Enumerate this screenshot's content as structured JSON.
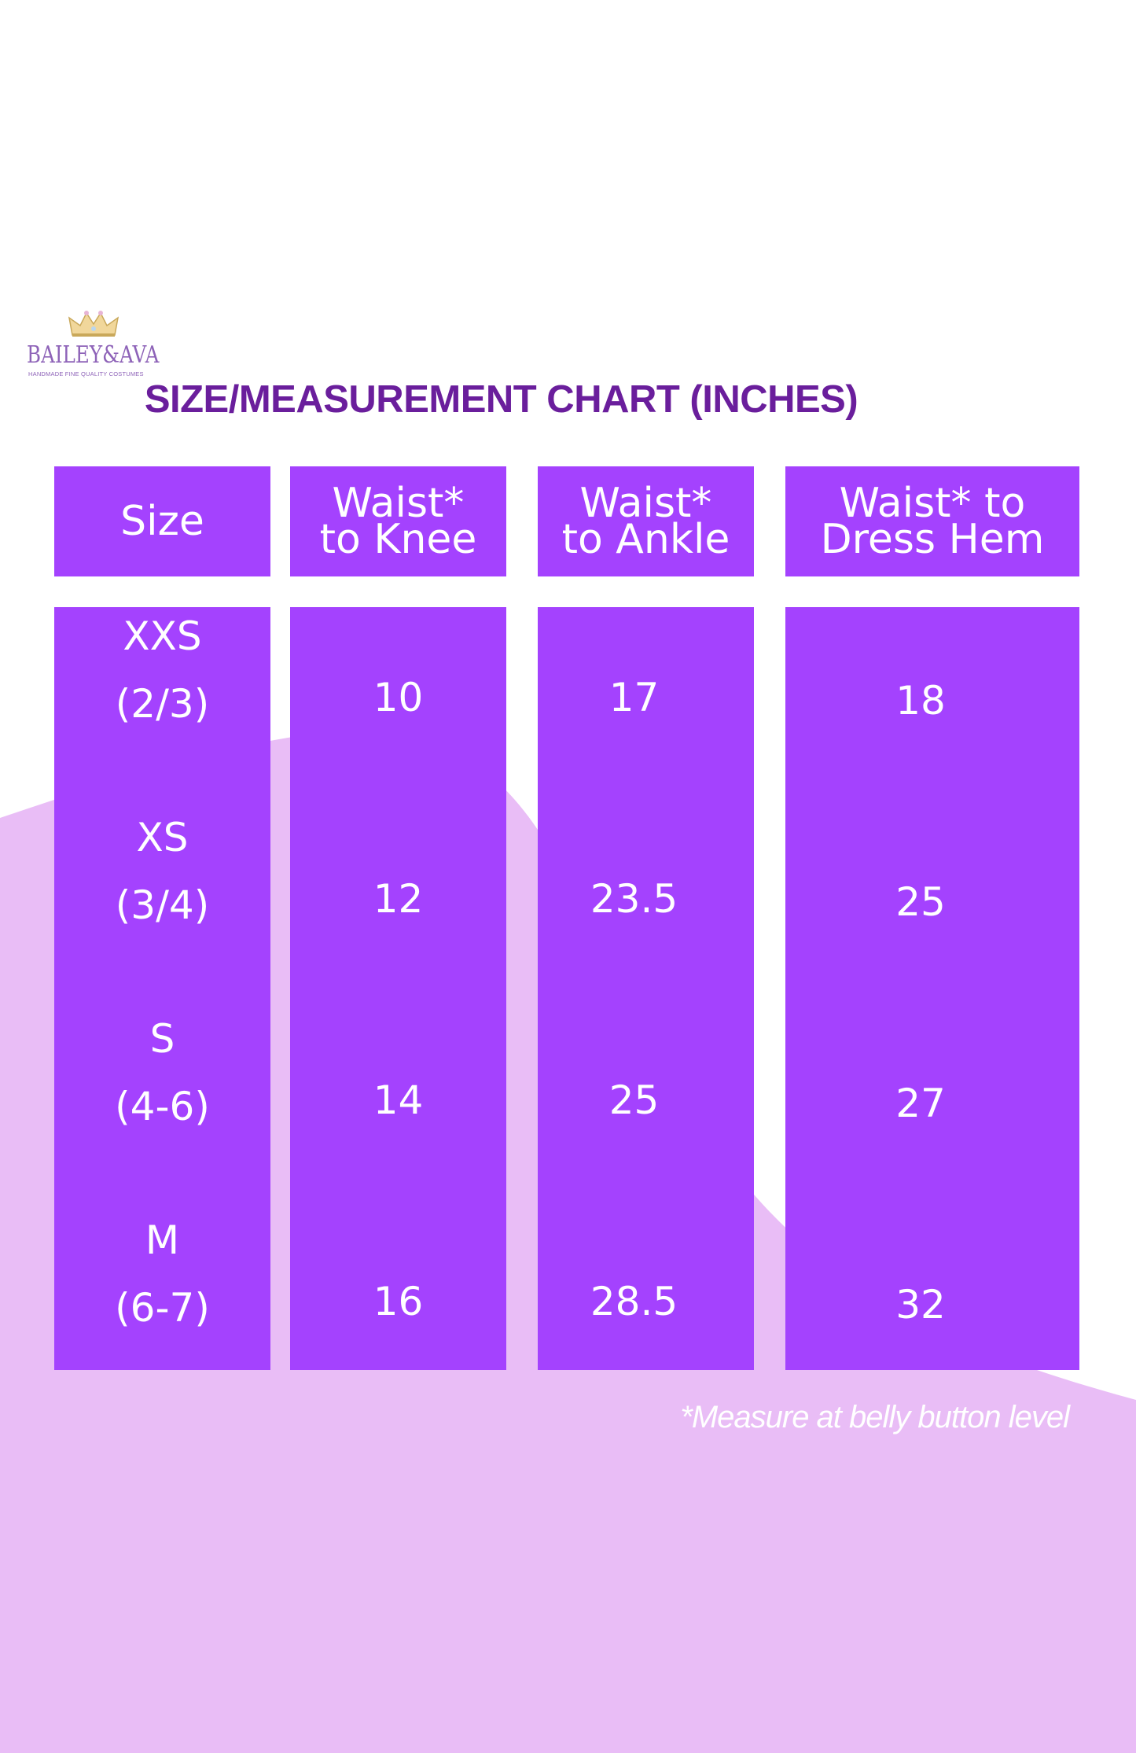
{
  "brand": {
    "name": "BAILEY&AVA",
    "tagline": "HANDMADE FINE QUALITY COSTUMES",
    "crown_icon": "crown-icon",
    "color": "#8e63b8"
  },
  "title": "SIZE/MEASUREMENT CHART (INCHES)",
  "table": {
    "headers": [
      {
        "line1": "Size",
        "line2": ""
      },
      {
        "line1": "Waist*",
        "line2": "to Knee"
      },
      {
        "line1": "Waist*",
        "line2": "to Ankle"
      },
      {
        "line1": "Waist* to",
        "line2": "Dress Hem"
      }
    ],
    "rows": [
      {
        "size": "XXS",
        "age": "(2/3)",
        "waist_to_knee": "10",
        "waist_to_ankle": "17",
        "waist_to_dress_hem": "18"
      },
      {
        "size": "XS",
        "age": "(3/4)",
        "waist_to_knee": "12",
        "waist_to_ankle": "23.5",
        "waist_to_dress_hem": "25"
      },
      {
        "size": "S",
        "age": "(4-6)",
        "waist_to_knee": "14",
        "waist_to_ankle": "25",
        "waist_to_dress_hem": "27"
      },
      {
        "size": "M",
        "age": "(6-7)",
        "waist_to_knee": "16",
        "waist_to_ankle": "28.5",
        "waist_to_dress_hem": "32"
      }
    ]
  },
  "footnote": "*Measure at belly button level",
  "colors": {
    "column": "#a442fe",
    "title": "#6a1e9c",
    "background_blob": "#e9bdf6",
    "background": "#ffffff"
  }
}
